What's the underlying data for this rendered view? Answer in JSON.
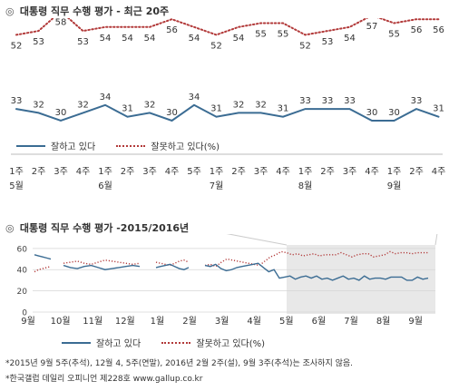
{
  "top_panel": {
    "icon": "target-icon",
    "title": "대통령 직무 수행 평가 - 최근 20주"
  },
  "bottom_panel": {
    "icon": "target-icon",
    "title": "대통령 직무 수행 평가 -2015/2016년"
  },
  "legend": {
    "approve_label": "잘하고 있다",
    "disapprove_label": "잘못하고 있다(%)"
  },
  "footnotes": {
    "line1": "*2015년 9월 5주(추석), 12월 4, 5주(연말), 2016년 2월 2주(설), 9월 3주(추석)는 조사하지 않음.",
    "line2": "*한국갤럽 데일리 오피니언 제228호 www.gallup.co.kr"
  },
  "colors": {
    "approve": "#3b6c93",
    "disapprove": "#b23a3a",
    "highlight": "#d9d9d9"
  },
  "chart_data": [
    {
      "type": "line",
      "week_labels": [
        "1주",
        "2주",
        "3주",
        "4주",
        "1주",
        "2주",
        "3주",
        "4주",
        "5주",
        "1주",
        "2주",
        "3주",
        "4주",
        "1주",
        "2주",
        "3주",
        "4주",
        "1주",
        "2주",
        "4주"
      ],
      "month_labels": [
        {
          "label": "5월",
          "index": 0
        },
        {
          "label": "6월",
          "index": 4
        },
        {
          "label": "7월",
          "index": 9
        },
        {
          "label": "8월",
          "index": 13
        },
        {
          "label": "9월",
          "index": 17
        }
      ],
      "series": [
        {
          "name": "잘하고 있다",
          "values": [
            33,
            32,
            30,
            32,
            34,
            31,
            32,
            30,
            34,
            31,
            32,
            32,
            31,
            33,
            33,
            33,
            30,
            30,
            33,
            31
          ]
        },
        {
          "name": "잘못하고 있다(%)",
          "values": [
            52,
            53,
            58,
            53,
            54,
            54,
            54,
            56,
            54,
            52,
            54,
            55,
            55,
            52,
            53,
            54,
            57,
            55,
            56,
            56
          ]
        }
      ],
      "ylim": [
        20,
        65
      ],
      "legend_position": "bottom"
    },
    {
      "type": "line",
      "y_ticks": [
        0,
        20,
        40,
        60
      ],
      "ylim": [
        0,
        65
      ],
      "month_labels": [
        "9월",
        "10월",
        "11월",
        "12월",
        "1월",
        "2월",
        "3월",
        "4월",
        "5월",
        "6월",
        "7월",
        "8월",
        "9월"
      ],
      "highlight_range": [
        "5월",
        "9월"
      ],
      "series": [
        {
          "name": "잘하고 있다",
          "segments": [
            [
              54,
              53,
              52,
              51,
              50
            ],
            [
              44,
              42,
              41,
              43,
              44,
              42,
              40,
              41,
              42,
              43,
              44,
              43
            ],
            [
              42,
              43,
              44,
              45,
              43,
              41,
              40,
              42
            ],
            [
              44,
              43,
              45,
              41,
              39,
              40,
              42,
              43,
              44,
              45,
              46,
              42,
              38,
              40,
              32,
              33,
              34,
              31,
              33,
              34,
              32,
              34,
              31,
              32,
              30,
              32,
              34,
              31,
              32,
              30,
              34,
              31,
              32,
              32,
              31,
              33,
              33,
              33,
              30,
              30,
              33,
              31,
              32
            ]
          ]
        },
        {
          "name": "잘못하고 있다(%)",
          "segments": [
            [
              38,
              40,
              41,
              42,
              43
            ],
            [
              46,
              47,
              48,
              46,
              45,
              47,
              49,
              48,
              47,
              46,
              45,
              46
            ],
            [
              47,
              46,
              45,
              44,
              46,
              48,
              49,
              47
            ],
            [
              44,
              45,
              43,
              47,
              50,
              49,
              48,
              47,
              46,
              45,
              44,
              48,
              52,
              54,
              57,
              56,
              54,
              55,
              53,
              54,
              55,
              53,
              54,
              54,
              54,
              56,
              54,
              52,
              54,
              55,
              55,
              52,
              53,
              54,
              57,
              55,
              56,
              56,
              55,
              56,
              56,
              56
            ]
          ]
        }
      ],
      "legend_position": "bottom"
    }
  ]
}
